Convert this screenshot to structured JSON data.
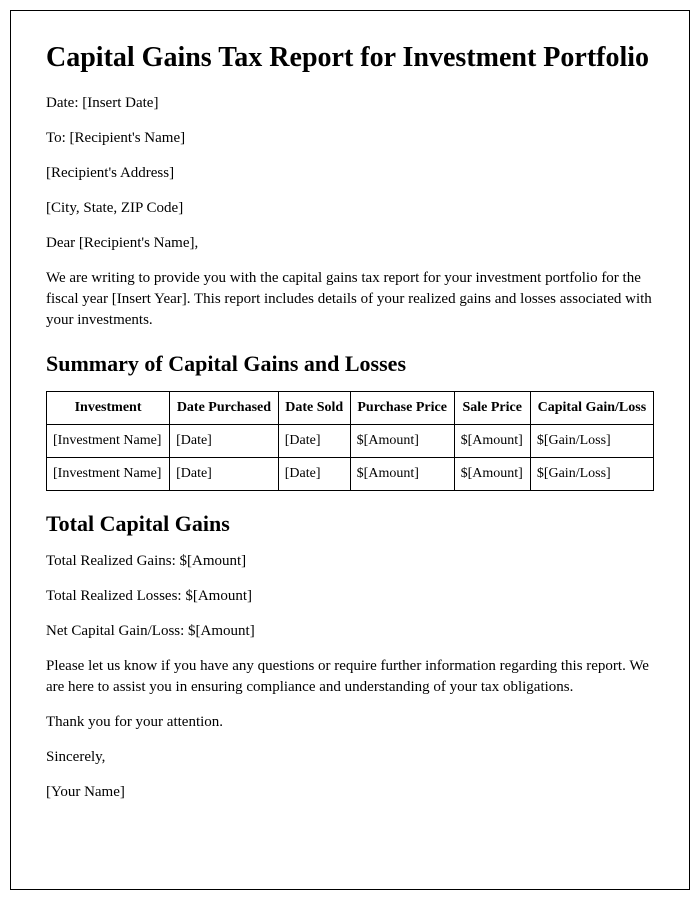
{
  "title": "Capital Gains Tax Report for Investment Portfolio",
  "header": {
    "date": "Date: [Insert Date]",
    "to": "To: [Recipient's Name]",
    "address": "[Recipient's Address]",
    "city": "[City, State, ZIP Code]",
    "salutation": "Dear [Recipient's Name],"
  },
  "intro": "We are writing to provide you with the capital gains tax report for your investment portfolio for the fiscal year [Insert Year]. This report includes details of your realized gains and losses associated with your investments.",
  "section_summary_title": "Summary of Capital Gains and Losses",
  "table": {
    "columns": [
      "Investment",
      "Date Purchased",
      "Date Sold",
      "Purchase Price",
      "Sale Price",
      "Capital Gain/Loss"
    ],
    "rows": [
      [
        "[Investment Name]",
        "[Date]",
        "[Date]",
        "$[Amount]",
        "$[Amount]",
        "$[Gain/Loss]"
      ],
      [
        "[Investment Name]",
        "[Date]",
        "[Date]",
        "$[Amount]",
        "$[Amount]",
        "$[Gain/Loss]"
      ]
    ]
  },
  "section_total_title": "Total Capital Gains",
  "totals": {
    "gains": "Total Realized Gains: $[Amount]",
    "losses": "Total Realized Losses: $[Amount]",
    "net": "Net Capital Gain/Loss: $[Amount]"
  },
  "outro1": "Please let us know if you have any questions or require further information regarding this report. We are here to assist you in ensuring compliance and understanding of your tax obligations.",
  "outro2": "Thank you for your attention.",
  "closing": "Sincerely,",
  "signature": "[Your Name]"
}
